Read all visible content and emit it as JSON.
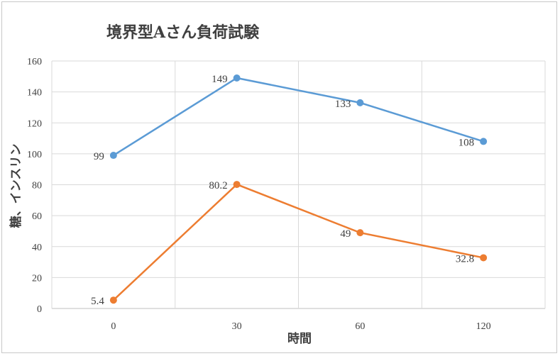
{
  "chart_data": {
    "type": "line",
    "title": "境界型Aさん負荷試験",
    "xlabel": "時間",
    "ylabel": "糖、インスリン",
    "categories": [
      "0",
      "30",
      "60",
      "120"
    ],
    "ylim": [
      0,
      160
    ],
    "yticks": [
      0,
      20,
      40,
      60,
      80,
      100,
      120,
      140,
      160
    ],
    "grid": true,
    "series": [
      {
        "values": [
          99,
          149,
          133,
          108
        ],
        "labels": [
          "99",
          "149",
          "133",
          "108"
        ],
        "color": "#5b9bd5"
      },
      {
        "values": [
          5.4,
          80.2,
          49,
          32.8
        ],
        "labels": [
          "5.4",
          "80.2",
          "49",
          "32.8"
        ],
        "color": "#ed7d31"
      }
    ]
  }
}
